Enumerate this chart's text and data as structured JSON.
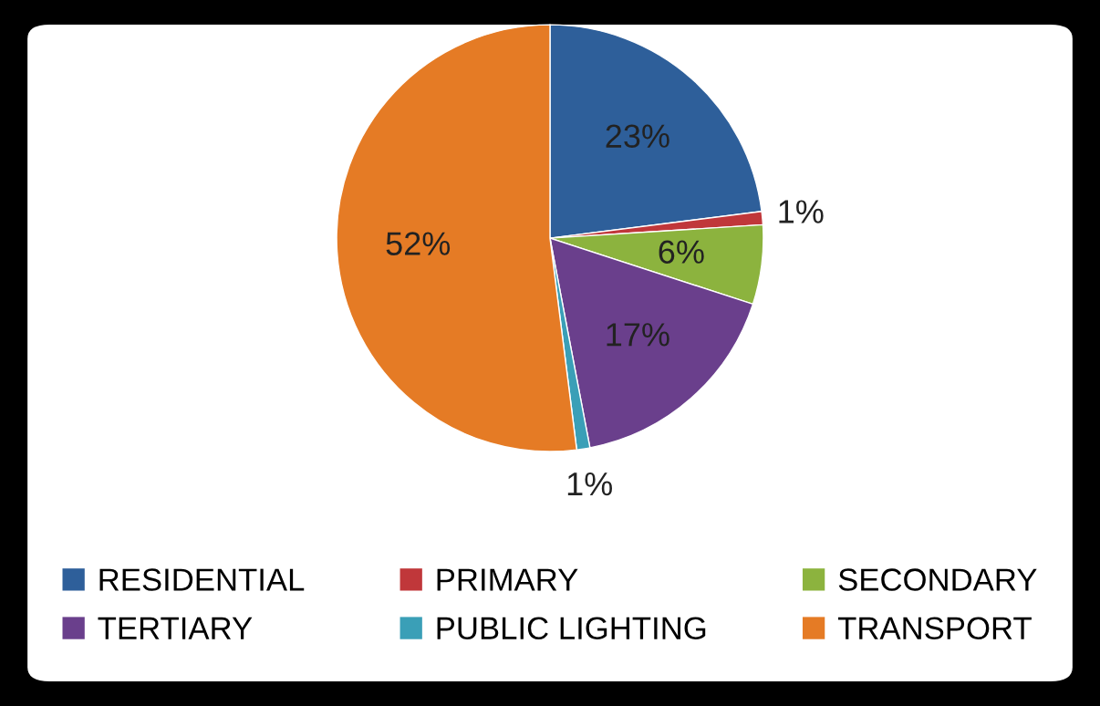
{
  "chart_data": {
    "type": "pie",
    "categories": [
      "RESIDENTIAL",
      "PRIMARY",
      "SECONDARY",
      "TERTIARY",
      "PUBLIC LIGHTING",
      "TRANSPORT"
    ],
    "values": [
      23,
      1,
      6,
      17,
      1,
      52
    ],
    "colors": [
      "#2e5f9a",
      "#c0373a",
      "#8cb33e",
      "#6a3f8c",
      "#3a9fb7",
      "#e57b25"
    ],
    "value_labels": [
      "23%",
      "1%",
      "6%",
      "17%",
      "1%",
      "52%"
    ],
    "legend": "bottom"
  }
}
